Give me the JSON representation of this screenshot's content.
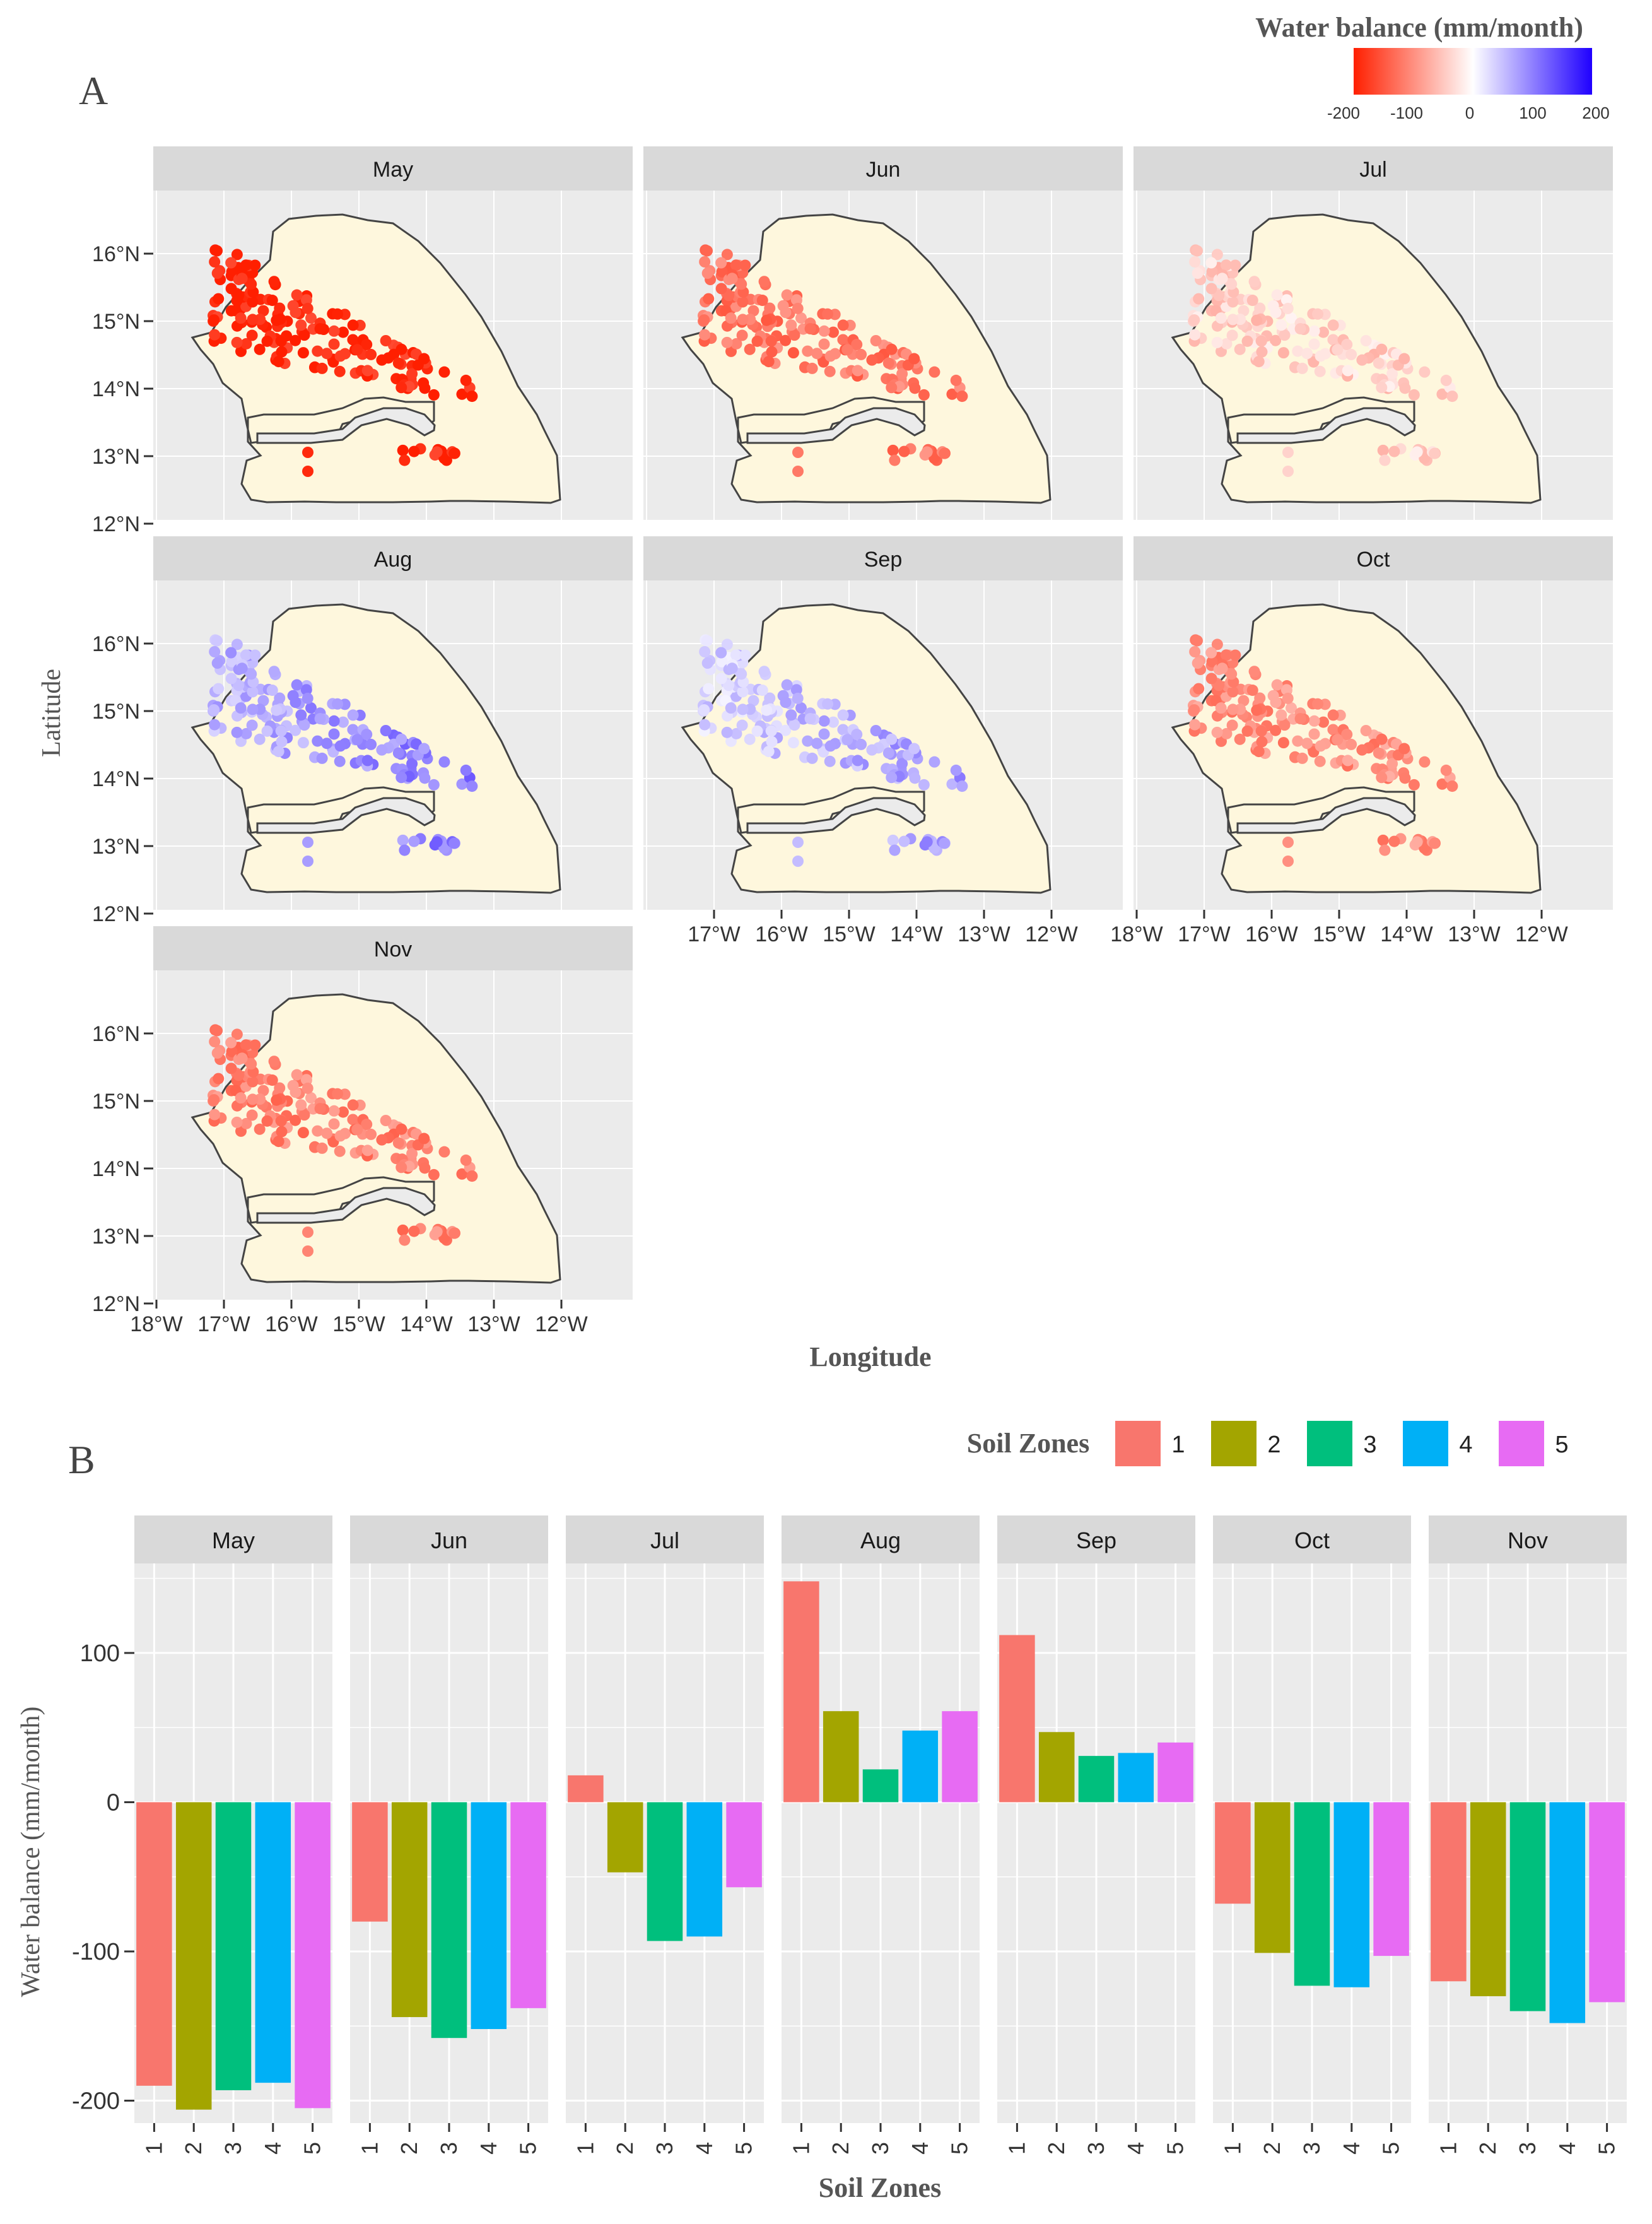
{
  "panel_a": {
    "label": "A",
    "xlabel": "Longitude",
    "ylabel": "Latitude",
    "legend": {
      "title": "Water balance (mm/month)",
      "ticks": [
        "-200",
        "-100",
        "0",
        "100",
        "200"
      ],
      "colors": {
        "low": "#FF1F00",
        "mid": "#FFFFFF",
        "high": "#1F00FF"
      }
    },
    "lat_ticks": [
      "16°N",
      "15°N",
      "14°N",
      "13°N",
      "12°N"
    ],
    "lon_ticks": [
      "18°W",
      "17°W",
      "16°W",
      "15°W",
      "14°W",
      "13°W",
      "12°W"
    ],
    "land_color": "#FEF7DD",
    "panel_bg": "#EBEBEB",
    "months": [
      {
        "name": "May",
        "mean_wb": -190
      },
      {
        "name": "Jun",
        "mean_wb": -120
      },
      {
        "name": "Jul",
        "mean_wb": -40
      },
      {
        "name": "Aug",
        "mean_wb": 60
      },
      {
        "name": "Sep",
        "mean_wb": 35
      },
      {
        "name": "Oct",
        "mean_wb": -100
      },
      {
        "name": "Nov",
        "mean_wb": -110
      }
    ]
  },
  "panel_b": {
    "label": "B"
  },
  "chart_data": {
    "type": "bar",
    "title": "",
    "xlabel": "Soil Zones",
    "ylabel": "Water balance (mm/month)",
    "ylim": [
      -215,
      160
    ],
    "yticks": [
      -200,
      -100,
      0,
      100
    ],
    "legend_title": "Soil Zones",
    "legend_position": "top-right",
    "categories": [
      "1",
      "2",
      "3",
      "4",
      "5"
    ],
    "colors": [
      "#F8766D",
      "#A3A500",
      "#00BF7D",
      "#00B0F6",
      "#E76BF3"
    ],
    "facets": [
      "May",
      "Jun",
      "Jul",
      "Aug",
      "Sep",
      "Oct",
      "Nov"
    ],
    "series": [
      {
        "name": "May",
        "values": [
          -190,
          -206,
          -193,
          -188,
          -205
        ]
      },
      {
        "name": "Jun",
        "values": [
          -80,
          -144,
          -158,
          -152,
          -138
        ]
      },
      {
        "name": "Jul",
        "values": [
          18,
          -47,
          -93,
          -90,
          -57
        ]
      },
      {
        "name": "Aug",
        "values": [
          148,
          61,
          22,
          48,
          61
        ]
      },
      {
        "name": "Sep",
        "values": [
          112,
          47,
          31,
          33,
          40
        ]
      },
      {
        "name": "Oct",
        "values": [
          -68,
          -101,
          -123,
          -124,
          -103
        ]
      },
      {
        "name": "Nov",
        "values": [
          -120,
          -130,
          -140,
          -148,
          -134
        ]
      }
    ]
  }
}
